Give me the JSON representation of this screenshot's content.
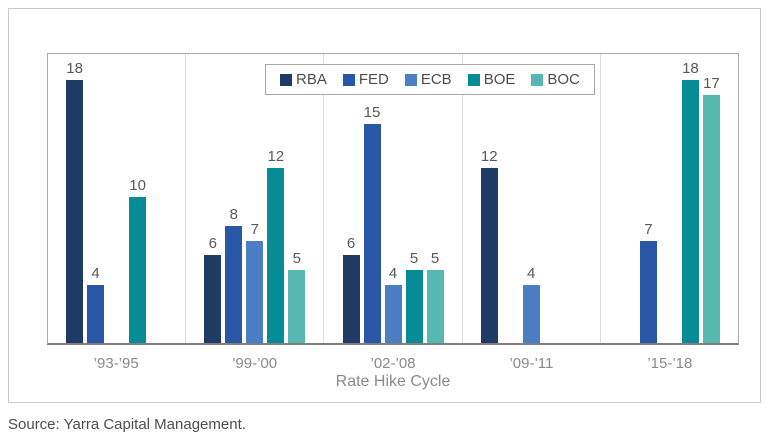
{
  "source_note": "Source: Yarra Capital Management.",
  "chart_data": {
    "type": "bar",
    "title": "",
    "xlabel": "Rate Hike Cycle",
    "ylabel": "",
    "ylim": [
      0,
      20
    ],
    "grid": "vertical-category-separators",
    "legend_position": "top-center-inside",
    "legend_entries": [
      "RBA",
      "FED",
      "ECB",
      "BOE",
      "BOC"
    ],
    "categories": [
      "’93-’95",
      "’99-’00",
      "’02-’08",
      "’09-’11",
      "’15-’18"
    ],
    "series": [
      {
        "name": "RBA",
        "color": "#1f3a64",
        "values": [
          18,
          6,
          6,
          12,
          null
        ]
      },
      {
        "name": "FED",
        "color": "#2a57a5",
        "values": [
          4,
          8,
          15,
          null,
          7
        ]
      },
      {
        "name": "ECB",
        "color": "#4c7ec3",
        "values": [
          null,
          7,
          4,
          4,
          null
        ]
      },
      {
        "name": "BOE",
        "color": "#078c96",
        "values": [
          10,
          12,
          5,
          null,
          18
        ]
      },
      {
        "name": "BOC",
        "color": "#57b8b2",
        "values": [
          null,
          5,
          5,
          null,
          17
        ]
      }
    ],
    "colors": {
      "RBA": "#1f3a64",
      "FED": "#2a57a5",
      "ECB": "#4c7ec3",
      "BOE": "#078c96",
      "BOC": "#57b8b2"
    }
  }
}
